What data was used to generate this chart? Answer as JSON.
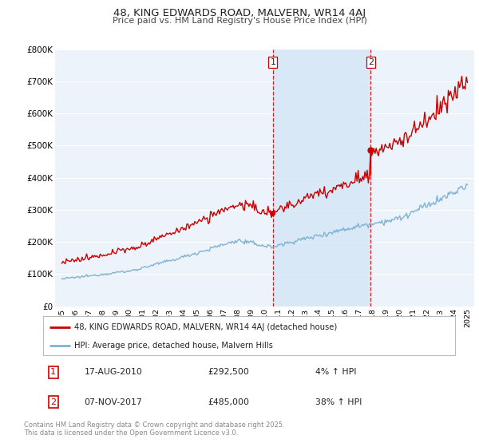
{
  "title_line1": "48, KING EDWARDS ROAD, MALVERN, WR14 4AJ",
  "title_line2": "Price paid vs. HM Land Registry's House Price Index (HPI)",
  "background_color": "#ffffff",
  "plot_bg_color": "#dce8f5",
  "plot_bg_color2": "#edf3fa",
  "shade_color": "#d0e4f7",
  "grid_color": "#ffffff",
  "hpi_color": "#7fb3d3",
  "price_color": "#cc0000",
  "purchase1_date_x": 2010.62,
  "purchase2_date_x": 2017.85,
  "purchase1_price": 292500,
  "purchase2_price": 485000,
  "legend_price": "48, KING EDWARDS ROAD, MALVERN, WR14 4AJ (detached house)",
  "legend_hpi": "HPI: Average price, detached house, Malvern Hills",
  "annotation1_date": "17-AUG-2010",
  "annotation1_price": "£292,500",
  "annotation1_hpi": "4% ↑ HPI",
  "annotation2_date": "07-NOV-2017",
  "annotation2_price": "£485,000",
  "annotation2_hpi": "38% ↑ HPI",
  "footer": "Contains HM Land Registry data © Crown copyright and database right 2025.\nThis data is licensed under the Open Government Licence v3.0.",
  "ylim_min": 0,
  "ylim_max": 800000,
  "xlim_min": 1994.5,
  "xlim_max": 2025.5
}
